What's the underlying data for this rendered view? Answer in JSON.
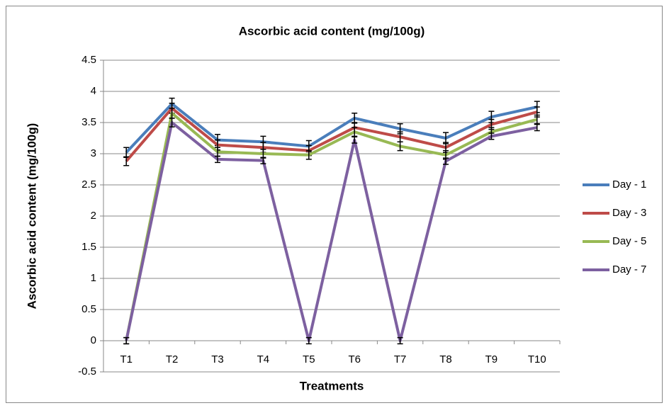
{
  "chart_data": {
    "type": "line",
    "title": "Ascorbic acid content (mg/100g)",
    "x_label": "Treatments",
    "y_label": "Ascorbic acid content (mg/100g)",
    "categories": [
      "T1",
      "T2",
      "T3",
      "T4",
      "T5",
      "T6",
      "T7",
      "T8",
      "T9",
      "T10"
    ],
    "ylim": [
      -0.5,
      4.5
    ],
    "yticks": [
      -0.5,
      0,
      0.5,
      1,
      1.5,
      2,
      2.5,
      3,
      3.5,
      4,
      4.5
    ],
    "grid": true,
    "legend": "right",
    "series": [
      {
        "name": "Day - 1",
        "color": "#4a7ebb",
        "values": [
          3.02,
          3.8,
          3.22,
          3.19,
          3.12,
          3.57,
          3.4,
          3.25,
          3.59,
          3.75
        ],
        "errors": [
          0.08,
          0.09,
          0.09,
          0.09,
          0.09,
          0.08,
          0.08,
          0.09,
          0.09,
          0.09
        ]
      },
      {
        "name": "Day - 3",
        "color": "#be4b48",
        "values": [
          2.88,
          3.73,
          3.14,
          3.1,
          3.05,
          3.42,
          3.27,
          3.1,
          3.47,
          3.67
        ],
        "errors": [
          0.07,
          0.08,
          0.08,
          0.08,
          0.08,
          0.08,
          0.08,
          0.08,
          0.08,
          0.08
        ]
      },
      {
        "name": "Day - 5",
        "color": "#98b954",
        "values": [
          0,
          3.65,
          3.03,
          3.0,
          2.98,
          3.35,
          3.12,
          2.98,
          3.35,
          3.55
        ],
        "errors": [
          0.05,
          0.08,
          0.07,
          0.07,
          0.07,
          0.07,
          0.07,
          0.07,
          0.07,
          0.07
        ]
      },
      {
        "name": "Day - 7",
        "color": "#7d60a0",
        "values": [
          0,
          3.5,
          2.91,
          2.89,
          0,
          3.22,
          0,
          2.88,
          3.28,
          3.42
        ],
        "errors": [
          0.05,
          0.07,
          0.05,
          0.05,
          0.05,
          0.05,
          0.05,
          0.05,
          0.05,
          0.05
        ]
      }
    ]
  }
}
